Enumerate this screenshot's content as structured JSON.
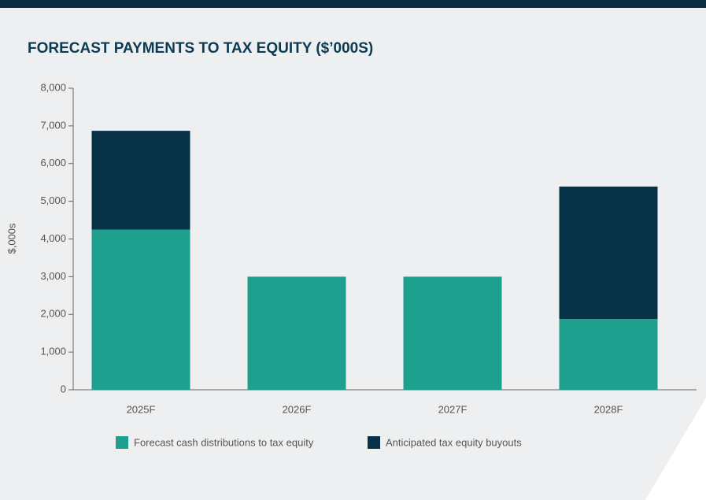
{
  "chart_data": {
    "type": "stacked_bar",
    "title": "FORECAST PAYMENTS TO TAX EQUITY ($’000S)",
    "y_label": "$,000s",
    "categories": [
      "2025F",
      "2026F",
      "2027F",
      "2028F"
    ],
    "series": [
      {
        "name": "Forecast cash distributions to tax equity",
        "color": "#1fa08f",
        "values": [
          4250,
          3000,
          3000,
          1880
        ]
      },
      {
        "name": "Anticipated tax equity buyouts",
        "color": "#073146",
        "values": [
          2620,
          0,
          0,
          3510
        ]
      }
    ],
    "ylim": [
      0,
      8000
    ],
    "yticks": [
      0,
      {
        "value": 1000,
        "label": "1,000"
      },
      {
        "value": 2000,
        "label": "2,000"
      },
      {
        "value": 3000,
        "label": "3,000"
      },
      {
        "value": 4000,
        "label": "4,000"
      },
      {
        "value": 5000,
        "label": "5,000"
      },
      {
        "value": 6000,
        "label": "6,000"
      },
      {
        "value": 7000,
        "label": "7,000"
      },
      {
        "value": 8000,
        "label": "8,000"
      }
    ],
    "grid": false,
    "legend": "bottom"
  }
}
